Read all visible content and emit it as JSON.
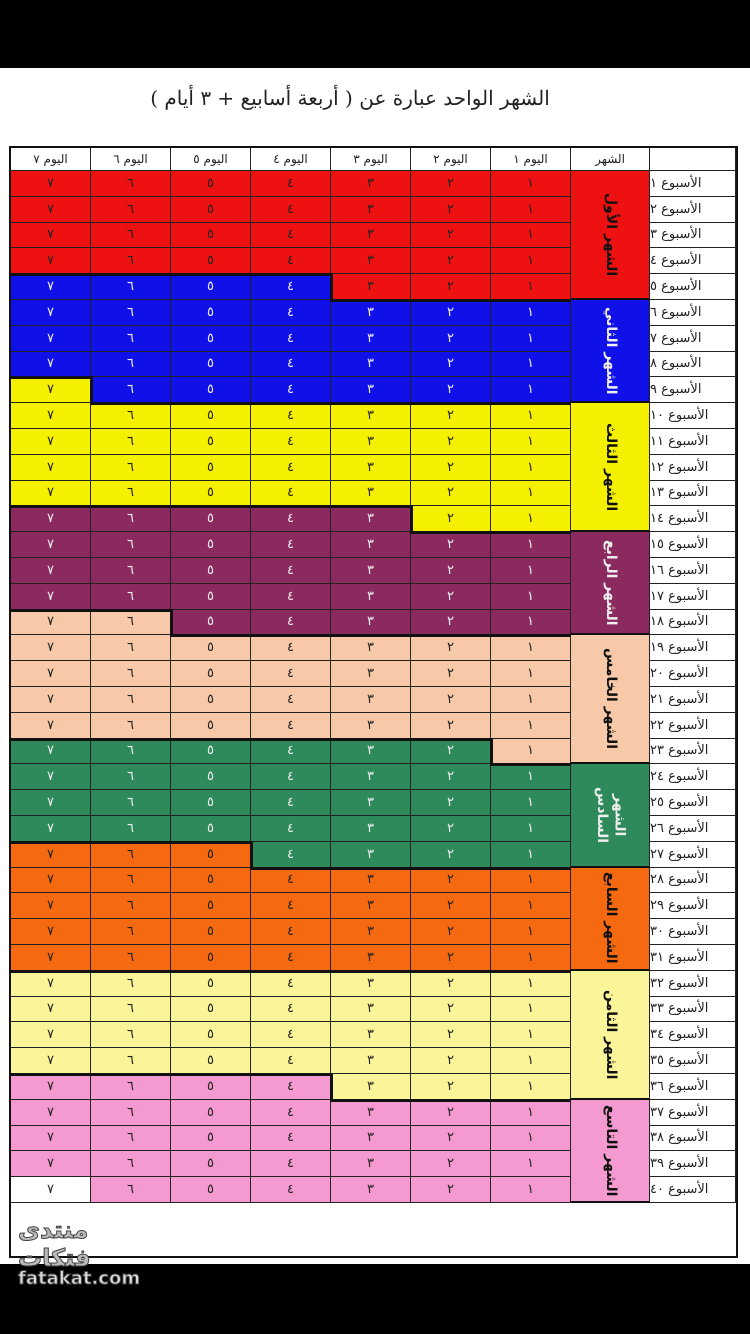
{
  "title": "الشهر الواحد عبارة عن ( أربعة أسابيع + ٣ أيام )",
  "headers": {
    "month": "الشهر",
    "days": [
      "اليوم ١",
      "اليوم ٢",
      "اليوم ٣",
      "اليوم ٤",
      "اليوم ٥",
      "اليوم ٦",
      "اليوم ٧"
    ]
  },
  "day_values": [
    "١",
    "٢",
    "٣",
    "٤",
    "٥",
    "٦",
    "٧"
  ],
  "weeks": [
    "الأسبوع ١",
    "الأسبوع ٢",
    "الأسبوع ٣",
    "الأسبوع ٤",
    "الأسبوع ٥",
    "الأسبوع ٦",
    "الأسبوع ٧",
    "الأسبوع ٨",
    "الأسبوع ٩",
    "الأسبوع ١٠",
    "الأسبوع ١١",
    "الأسبوع ١٢",
    "الأسبوع ١٣",
    "الأسبوع ١٤",
    "الأسبوع ١٥",
    "الأسبوع ١٦",
    "الأسبوع ١٧",
    "الأسبوع ١٨",
    "الأسبوع ١٩",
    "الأسبوع ٢٠",
    "الأسبوع ٢١",
    "الأسبوع ٢٢",
    "الأسبوع ٢٣",
    "الأسبوع ٢٤",
    "الأسبوع ٢٥",
    "الأسبوع ٢٦",
    "الأسبوع ٢٧",
    "الأسبوع ٢٨",
    "الأسبوع ٢٩",
    "الأسبوع ٣٠",
    "الأسبوع ٣١",
    "الأسبوع ٣٢",
    "الأسبوع ٣٣",
    "الأسبوع ٣٤",
    "الأسبوع ٣٥",
    "الأسبوع ٣٦",
    "الأسبوع ٣٧",
    "الأسبوع ٣٨",
    "الأسبوع ٣٩",
    "الأسبوع ٤٠"
  ],
  "months": [
    {
      "label": "الشهر الأول",
      "color": "#ee1111",
      "start_week": 1,
      "start_day": 1,
      "end_week": 5,
      "end_day": 3
    },
    {
      "label": "الشهر الثاني",
      "color": "#1010e8",
      "start_week": 5,
      "start_day": 4,
      "end_week": 9,
      "end_day": 6
    },
    {
      "label": "الشهر الثالث",
      "color": "#f5f000",
      "start_week": 9,
      "start_day": 7,
      "end_week": 14,
      "end_day": 2
    },
    {
      "label": "الشهر الرابع",
      "color": "#8a2a5e",
      "start_week": 14,
      "start_day": 3,
      "end_week": 18,
      "end_day": 5
    },
    {
      "label": "الشهر الخامس",
      "color": "#f7c9a8",
      "start_week": 18,
      "start_day": 6,
      "end_week": 23,
      "end_day": 1
    },
    {
      "label": "الشهر السادس",
      "color": "#2e8a5a",
      "start_week": 23,
      "start_day": 2,
      "end_week": 27,
      "end_day": 4
    },
    {
      "label": "الشهر السابع",
      "color": "#f56a10",
      "start_week": 27,
      "start_day": 5,
      "end_week": 31,
      "end_day": 7
    },
    {
      "label": "الشهر الثامن",
      "color": "#fbf59a",
      "start_week": 32,
      "start_day": 1,
      "end_week": 36,
      "end_day": 3
    },
    {
      "label": "الشهر التاسع",
      "color": "#f49ad0",
      "start_week": 36,
      "start_day": 4,
      "end_week": 40,
      "end_day": 6
    }
  ],
  "month_label_rows": [
    [
      1,
      5
    ],
    [
      6,
      9
    ],
    [
      10,
      14
    ],
    [
      15,
      18
    ],
    [
      19,
      23
    ],
    [
      24,
      27
    ],
    [
      28,
      31
    ],
    [
      32,
      36
    ],
    [
      37,
      40
    ]
  ],
  "logo": {
    "arabic": "منتدى فتكات",
    "latin": "fatakat.com"
  }
}
